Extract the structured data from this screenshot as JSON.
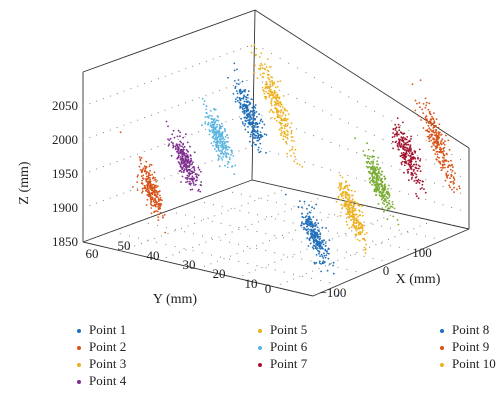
{
  "chart_data": {
    "type": "scatter3d",
    "title": "",
    "xlabel": "X (mm)",
    "ylabel": "Y (mm)",
    "zlabel": "Z (mm)",
    "xlim": [
      -130,
      160
    ],
    "ylim": [
      -5,
      60
    ],
    "zlim": [
      1850,
      2100
    ],
    "xticks": [
      "−100",
      "0",
      "100"
    ],
    "yticks": [
      "0",
      "10",
      "20",
      "30",
      "40",
      "50",
      "60"
    ],
    "zticks": [
      "1850",
      "1900",
      "1950",
      "2000",
      "2050"
    ],
    "grid": true,
    "legend_position": "bottom",
    "series": [
      {
        "name": "Point 1",
        "color": "#1f6fba",
        "center": [
          0,
          18,
          1865
        ]
      },
      {
        "name": "Point 2",
        "color": "#d95319",
        "center": [
          -110,
          32,
          1935
        ]
      },
      {
        "name": "Point 3",
        "color": "#edb120",
        "center": [
          -110,
          60,
          2045
        ]
      },
      {
        "name": "Point 4",
        "color": "#7e2f8e",
        "center": [
          -115,
          48,
          1960
        ]
      },
      {
        "name": "Point 5",
        "color": "#edb120",
        "center": [
          35,
          18,
          1895
        ]
      },
      {
        "name": "Point 6",
        "color": "#5ab4e0",
        "center": [
          -110,
          55,
          2005
        ]
      },
      {
        "name": "Point 7",
        "color": "#a2142f",
        "center": [
          90,
          22,
          1960
        ]
      },
      {
        "name": "Point 8",
        "color": "#1f6fba",
        "center": [
          -108,
          58,
          2030
        ]
      },
      {
        "name": "Point 9",
        "color": "#d95319",
        "center": [
          120,
          25,
          1970
        ]
      },
      {
        "name": "Point 10",
        "color": "#edb120",
        "center": [
          80,
          5,
          1895
        ]
      }
    ],
    "extra_cluster_colors": [
      "#77ac30"
    ]
  }
}
